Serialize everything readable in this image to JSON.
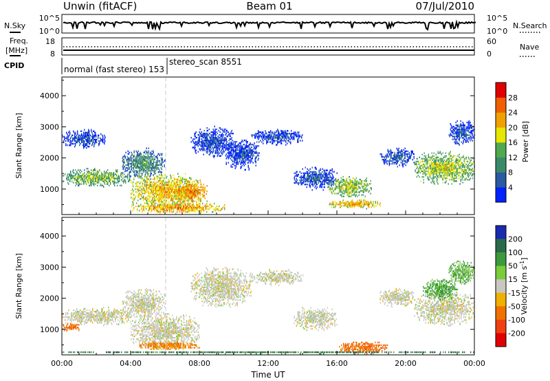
{
  "header": {
    "radar": "Unwin (fitACF)",
    "beam": "Beam 01",
    "date": "07/Jul/2010"
  },
  "side_labels": {
    "nsky": "N.Sky",
    "nsearch": "N.Search",
    "freq_line1": "Freq.",
    "freq_line2": "[MHz]",
    "nave": "Nave",
    "cpid": "CPID"
  },
  "cpid": {
    "mode1": "normal (fast stereo) 153",
    "mode2": "stereo_scan 8551"
  },
  "noise_panel": {
    "left_ticks": [
      "10^5",
      "10^0"
    ],
    "right_ticks": [
      "10^5",
      "10^0"
    ]
  },
  "freq_panel": {
    "left_ticks": [
      "18",
      "8"
    ],
    "right_ticks": [
      "60",
      "0"
    ],
    "freq_mhz": 12,
    "nave": 20
  },
  "colors": {
    "power": [
      "#0022ff",
      "#2a5aa0",
      "#3a8a6a",
      "#50a850",
      "#e6e600",
      "#f0a000",
      "#f06000",
      "#e00000"
    ],
    "velocity": [
      "#e00000",
      "#f04010",
      "#f07000",
      "#f0b000",
      "#c8c8c0",
      "#7acc3a",
      "#3c9a3c",
      "#2a6a4a",
      "#1a2ab0"
    ],
    "ground_scatter": "#c8c8c0"
  },
  "chart_data": [
    {
      "type": "heatmap",
      "title": "Power",
      "xlabel": "Time UT",
      "ylabel": "Slant Range [km]",
      "x_ticks": [
        "00:00",
        "04:00",
        "08:00",
        "12:00",
        "16:00",
        "20:00",
        "00:00"
      ],
      "xlim_hours": [
        0,
        24
      ],
      "ylim": [
        180,
        4600
      ],
      "y_ticks": [
        1000,
        2000,
        3000,
        4000
      ],
      "colorbar_label": "Power [dB]",
      "colorbar_ticks": [
        "4",
        "8",
        "12",
        "16",
        "20",
        "24",
        "28"
      ],
      "clim": [
        0,
        32
      ],
      "regions": [
        {
          "t": [
            0.0,
            4.0
          ],
          "r": [
            1050,
            1650
          ],
          "level": 16
        },
        {
          "t": [
            0.0,
            2.5
          ],
          "r": [
            2300,
            2900
          ],
          "level": 6
        },
        {
          "t": [
            3.5,
            6.0
          ],
          "r": [
            1300,
            2300
          ],
          "level": 12
        },
        {
          "t": [
            4.0,
            8.0
          ],
          "r": [
            300,
            1500
          ],
          "level": 22
        },
        {
          "t": [
            6.5,
            8.5
          ],
          "r": [
            500,
            1300
          ],
          "level": 25
        },
        {
          "t": [
            4.0,
            9.5
          ],
          "r": [
            200,
            550
          ],
          "level": 24
        },
        {
          "t": [
            7.5,
            10.0
          ],
          "r": [
            2000,
            3000
          ],
          "level": 6
        },
        {
          "t": [
            9.5,
            11.5
          ],
          "r": [
            1600,
            2600
          ],
          "level": 6
        },
        {
          "t": [
            11.0,
            14.0
          ],
          "r": [
            2400,
            2900
          ],
          "level": 6
        },
        {
          "t": [
            13.5,
            16.0
          ],
          "r": [
            950,
            1700
          ],
          "level": 7
        },
        {
          "t": [
            15.5,
            18.0
          ],
          "r": [
            700,
            1400
          ],
          "level": 18
        },
        {
          "t": [
            15.5,
            18.5
          ],
          "r": [
            350,
            650
          ],
          "level": 23
        },
        {
          "t": [
            18.5,
            20.5
          ],
          "r": [
            1700,
            2300
          ],
          "level": 7
        },
        {
          "t": [
            20.5,
            24.0
          ],
          "r": [
            1100,
            2200
          ],
          "level": 18
        },
        {
          "t": [
            22.5,
            24.0
          ],
          "r": [
            2400,
            3200
          ],
          "level": 6
        }
      ]
    },
    {
      "type": "heatmap",
      "title": "Velocity",
      "xlabel": "Time UT",
      "ylabel": "Slant Range [km]",
      "x_ticks": [
        "00:00",
        "04:00",
        "08:00",
        "12:00",
        "16:00",
        "20:00",
        "00:00"
      ],
      "xlim_hours": [
        0,
        24
      ],
      "ylim": [
        180,
        4600
      ],
      "y_ticks": [
        1000,
        2000,
        3000,
        4000
      ],
      "colorbar_label": "Velocity [m s^-1]",
      "colorbar_ticks": [
        "200",
        "100",
        "50",
        "15",
        "-15",
        "-50",
        "-100",
        "-200"
      ],
      "regions": [
        {
          "t": [
            0.0,
            4.0
          ],
          "r": [
            1100,
            1700
          ],
          "vel": 0
        },
        {
          "t": [
            0.0,
            1.0
          ],
          "r": [
            900,
            1200
          ],
          "vel": -60
        },
        {
          "t": [
            3.5,
            6.0
          ],
          "r": [
            1300,
            2300
          ],
          "vel": 0
        },
        {
          "t": [
            4.0,
            8.0
          ],
          "r": [
            350,
            1500
          ],
          "vel": 0
        },
        {
          "t": [
            4.5,
            8.0
          ],
          "r": [
            300,
            600
          ],
          "vel": -40
        },
        {
          "t": [
            7.5,
            11.0
          ],
          "r": [
            1700,
            3000
          ],
          "vel": 0
        },
        {
          "t": [
            11.0,
            14.0
          ],
          "r": [
            2400,
            2900
          ],
          "vel": 0
        },
        {
          "t": [
            13.5,
            16.0
          ],
          "r": [
            950,
            1700
          ],
          "vel": 0
        },
        {
          "t": [
            16.0,
            19.0
          ],
          "r": [
            200,
            600
          ],
          "vel": -60
        },
        {
          "t": [
            18.5,
            20.5
          ],
          "r": [
            1700,
            2300
          ],
          "vel": 0
        },
        {
          "t": [
            20.5,
            24.0
          ],
          "r": [
            1100,
            2200
          ],
          "vel": 0
        },
        {
          "t": [
            21.0,
            23.0
          ],
          "r": [
            1900,
            2600
          ],
          "vel": 40
        },
        {
          "t": [
            22.5,
            24.0
          ],
          "r": [
            2400,
            3200
          ],
          "vel": 30
        },
        {
          "t": [
            0.0,
            24.0
          ],
          "r": [
            200,
            280
          ],
          "vel": 80
        }
      ]
    }
  ]
}
